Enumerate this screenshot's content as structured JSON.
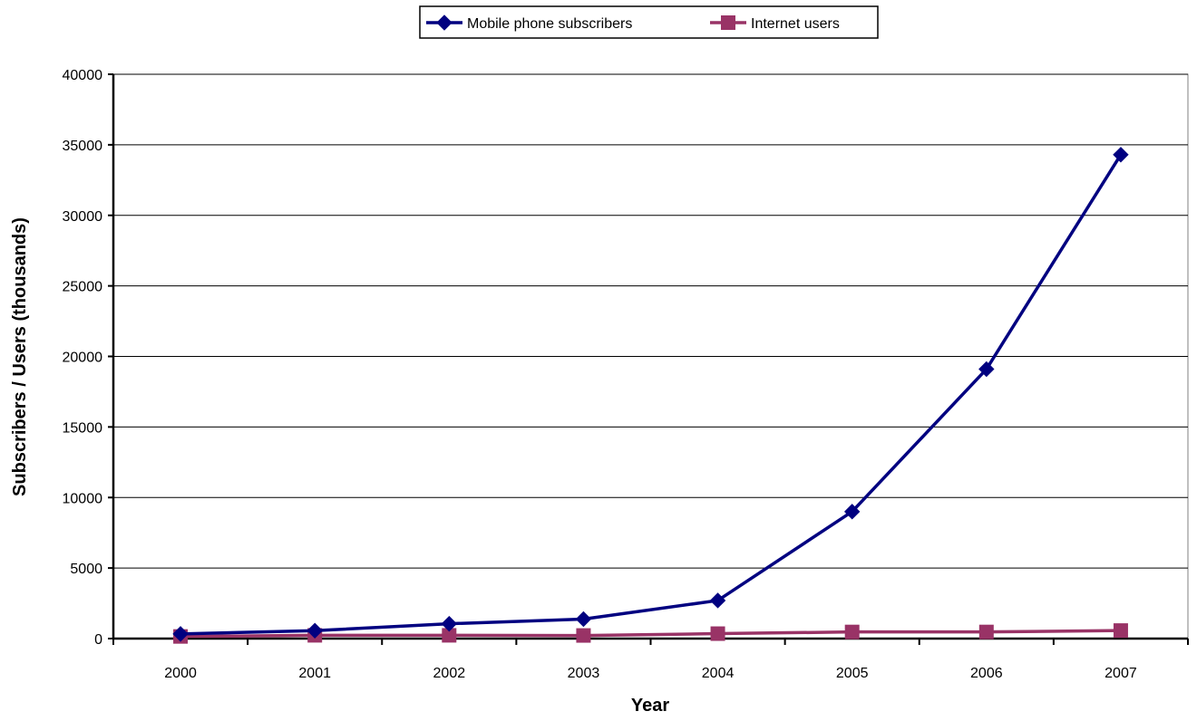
{
  "chart_data": {
    "type": "line",
    "title": "",
    "xlabel": "Year",
    "ylabel": "Subscribers / Users (thousands)",
    "categories": [
      "2000",
      "2001",
      "2002",
      "2003",
      "2004",
      "2005",
      "2006",
      "2007"
    ],
    "ylim": [
      0,
      40000
    ],
    "yticks": [
      0,
      5000,
      10000,
      15000,
      20000,
      25000,
      30000,
      35000,
      40000
    ],
    "grid": "horizontal",
    "legend_position": "top-center",
    "series": [
      {
        "name": "Mobile phone subscribers",
        "color": "#000080",
        "marker": "diamond",
        "values": [
          330,
          560,
          1050,
          1380,
          2700,
          9000,
          19100,
          34300
        ]
      },
      {
        "name": "Internet users",
        "color": "#993366",
        "marker": "square",
        "values": [
          150,
          230,
          230,
          220,
          350,
          470,
          470,
          570
        ]
      }
    ]
  }
}
